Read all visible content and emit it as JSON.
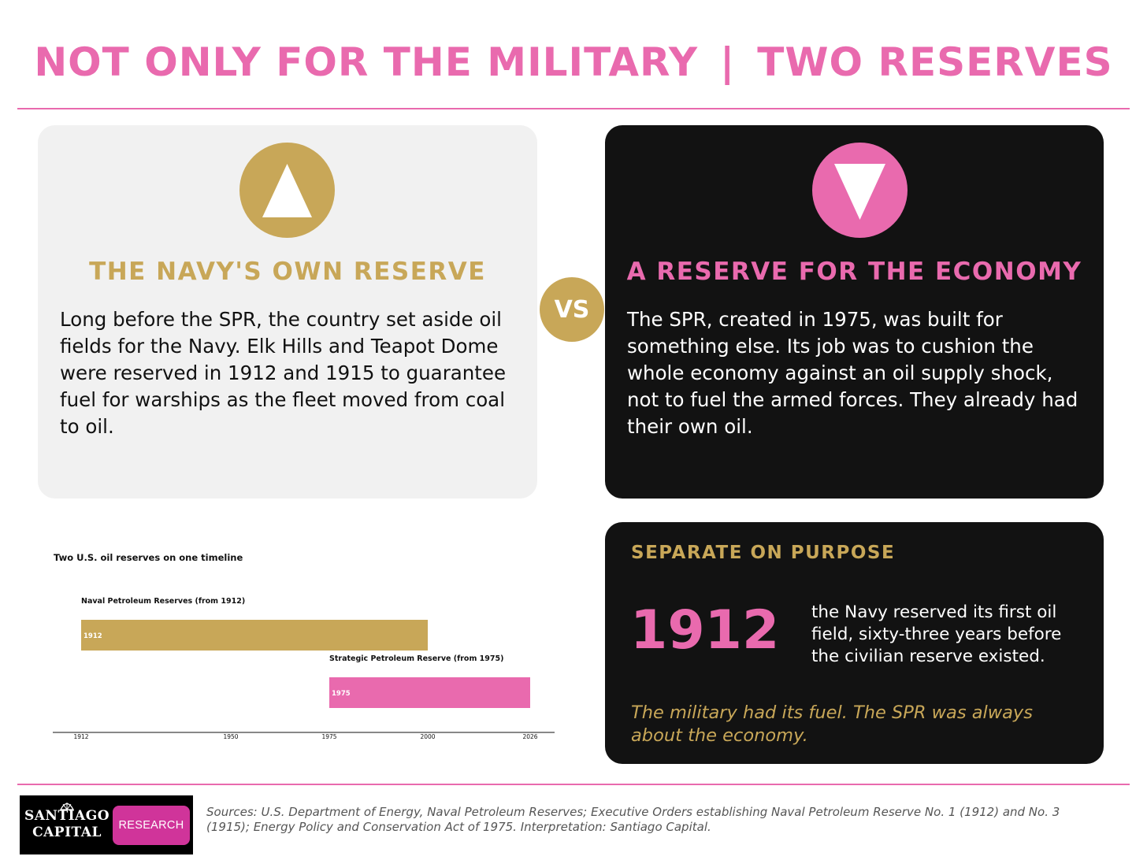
{
  "header": {
    "title_left": "NOT ONLY FOR THE MILITARY",
    "title_separator": "|",
    "title_right": "TWO RESERVES"
  },
  "colors": {
    "pink": "#e96aae",
    "gold": "#c8a758",
    "dark": "#121212",
    "light": "#f1f1f1"
  },
  "left_card": {
    "icon": "triangle-up-icon",
    "title": "THE NAVY'S OWN RESERVE",
    "body": "Long before the SPR, the country set aside oil fields for the Navy. Elk Hills and Teapot Dome were reserved in 1912 and 1915 to guarantee fuel for warships as the fleet moved from coal to oil."
  },
  "vs_label": "VS",
  "right_card": {
    "icon": "triangle-down-icon",
    "title": "A RESERVE FOR THE ECONOMY",
    "body": "The SPR, created in 1975, was built for something else. Its job was to cushion the whole economy against an oil supply shock, not to fuel the armed forces. They already had their own oil."
  },
  "stat_card": {
    "heading": "SEPARATE ON PURPOSE",
    "number": "1912",
    "description": "the Navy reserved its first oil field, sixty-three years before the civilian reserve existed.",
    "quote": "The military had its fuel. The SPR was always about the economy."
  },
  "chart_data": {
    "type": "bar",
    "orientation": "horizontal-timeline",
    "title": "Two U.S. oil reserves on one timeline",
    "xlim": [
      1912,
      2026
    ],
    "x_ticks": [
      "1912",
      "1950",
      "1975",
      "2000",
      "2026"
    ],
    "grid": false,
    "series": [
      {
        "name": "Naval Petroleum Reserves  (from 1912)",
        "start": 1912,
        "end": 2000,
        "label": "1912",
        "color": "#c8a758"
      },
      {
        "name": "Strategic Petroleum Reserve  (from 1975)",
        "start": 1975,
        "end": 2026,
        "label": "1975",
        "color": "#e96aae"
      }
    ]
  },
  "footer": {
    "logo_line1": "SANTIAGO",
    "logo_line2": "CAPITAL",
    "logo_badge": "RESEARCH",
    "sources": "Sources: U.S. Department of Energy, Naval Petroleum Reserves; Executive Orders establishing Naval Petroleum Reserve No. 1 (1912) and No. 3 (1915); Energy Policy and Conservation Act of 1975. Interpretation: Santiago Capital."
  }
}
